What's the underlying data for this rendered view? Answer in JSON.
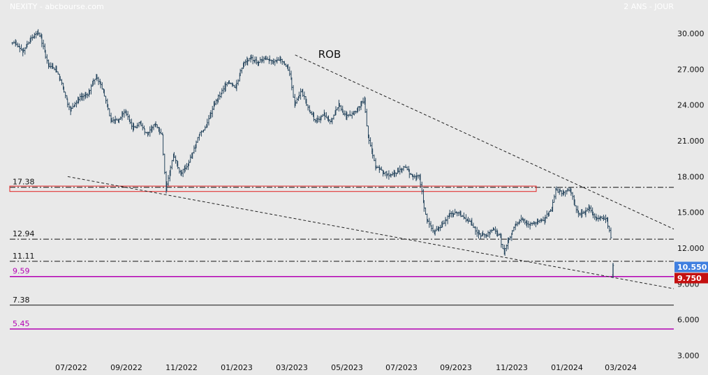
{
  "header": {
    "symbol_source": "NEXITY - abcbourse.com",
    "timeframe": "2 ANS - JOUR"
  },
  "colors": {
    "background": "#e9e9e9",
    "candles": "#27465e",
    "magenta": "#b300b3",
    "red": "#e02020",
    "badge_blue": "#3f7fe0",
    "badge_red": "#c41010"
  },
  "chart_data": {
    "type": "ohlc",
    "ylim": [
      3,
      31.5
    ],
    "y_ticks": [
      "30.000",
      "27.000",
      "24.000",
      "21.000",
      "18.000",
      "15.000",
      "12.000",
      "9.000",
      "6.000",
      "3.000"
    ],
    "x_ticks": [
      "07/2022",
      "09/2022",
      "11/2022",
      "01/2023",
      "03/2023",
      "05/2023",
      "07/2023",
      "09/2023",
      "11/2023",
      "01/2024",
      "03/2024"
    ],
    "annotation": "ROB",
    "levels": [
      {
        "label": "17.38",
        "value": 17.1,
        "style": "dashdot",
        "color": "#111111"
      },
      {
        "label": "12.94",
        "value": 12.75,
        "style": "dashdot",
        "color": "#111111"
      },
      {
        "label": "11.11",
        "value": 10.9,
        "style": "dashdot",
        "color": "#111111"
      },
      {
        "label": "9.59",
        "value": 9.62,
        "style": "solid",
        "color": "#b300b3"
      },
      {
        "label": "7.38",
        "value": 7.22,
        "style": "solid",
        "color": "#111111"
      },
      {
        "label": "5.45",
        "value": 5.22,
        "style": "solid",
        "color": "#b300b3"
      }
    ],
    "resistance_zone": {
      "top": 17.2,
      "bottom": 16.75
    },
    "price_badges": [
      {
        "label": "10.550",
        "value": 10.55,
        "color": "#3f7fe0"
      },
      {
        "label": "9.750",
        "value": 9.75,
        "color": "#c41010"
      }
    ],
    "path_points": [
      [
        0,
        29.2
      ],
      [
        2,
        28.5
      ],
      [
        4,
        29.4
      ],
      [
        6,
        30.2
      ],
      [
        7,
        29.6
      ],
      [
        9,
        27.4
      ],
      [
        11,
        27.0
      ],
      [
        13,
        25.5
      ],
      [
        15,
        23.5
      ],
      [
        17,
        24.5
      ],
      [
        20,
        25.0
      ],
      [
        22,
        26.5
      ],
      [
        24,
        25.2
      ],
      [
        26,
        22.8
      ],
      [
        28,
        22.6
      ],
      [
        30,
        23.5
      ],
      [
        32,
        22.0
      ],
      [
        34,
        22.5
      ],
      [
        36,
        21.5
      ],
      [
        38,
        22.4
      ],
      [
        40,
        21.5
      ],
      [
        41,
        16.9
      ],
      [
        43,
        19.8
      ],
      [
        45,
        18.3
      ],
      [
        47,
        19.0
      ],
      [
        50,
        21.5
      ],
      [
        52,
        22.2
      ],
      [
        54,
        24.0
      ],
      [
        56,
        25.0
      ],
      [
        58,
        26.0
      ],
      [
        60,
        25.5
      ],
      [
        62,
        27.4
      ],
      [
        64,
        27.9
      ],
      [
        66,
        27.6
      ],
      [
        68,
        28.0
      ],
      [
        70,
        27.7
      ],
      [
        72,
        27.8
      ],
      [
        74,
        27.2
      ],
      [
        75,
        26.2
      ],
      [
        76,
        24.0
      ],
      [
        78,
        25.2
      ],
      [
        80,
        23.5
      ],
      [
        82,
        22.6
      ],
      [
        84,
        23.2
      ],
      [
        86,
        22.6
      ],
      [
        88,
        24.0
      ],
      [
        90,
        23.0
      ],
      [
        92,
        23.2
      ],
      [
        94,
        24.1
      ],
      [
        95,
        24.3
      ],
      [
        96,
        21.4
      ],
      [
        98,
        18.8
      ],
      [
        100,
        18.4
      ],
      [
        102,
        18.0
      ],
      [
        104,
        18.4
      ],
      [
        106,
        18.8
      ],
      [
        108,
        18.1
      ],
      [
        110,
        18.0
      ],
      [
        111,
        16.0
      ],
      [
        112,
        14.4
      ],
      [
        114,
        13.3
      ],
      [
        116,
        13.8
      ],
      [
        118,
        14.8
      ],
      [
        120,
        15.0
      ],
      [
        122,
        14.6
      ],
      [
        124,
        14.2
      ],
      [
        126,
        13.2
      ],
      [
        128,
        13.0
      ],
      [
        130,
        13.6
      ],
      [
        132,
        12.9
      ],
      [
        133,
        11.5
      ],
      [
        134,
        12.6
      ],
      [
        136,
        13.9
      ],
      [
        138,
        14.4
      ],
      [
        140,
        14.0
      ],
      [
        142,
        14.2
      ],
      [
        144,
        14.4
      ],
      [
        146,
        15.4
      ],
      [
        147,
        16.9
      ],
      [
        149,
        16.6
      ],
      [
        151,
        17.0
      ],
      [
        153,
        15.0
      ],
      [
        155,
        14.9
      ],
      [
        156,
        15.4
      ],
      [
        158,
        14.6
      ],
      [
        160,
        14.5
      ],
      [
        161,
        14.4
      ],
      [
        162,
        13.0
      ]
    ],
    "last_bar": {
      "o": 9.75,
      "h": 10.75,
      "l": 9.5,
      "c": 10.55
    }
  }
}
